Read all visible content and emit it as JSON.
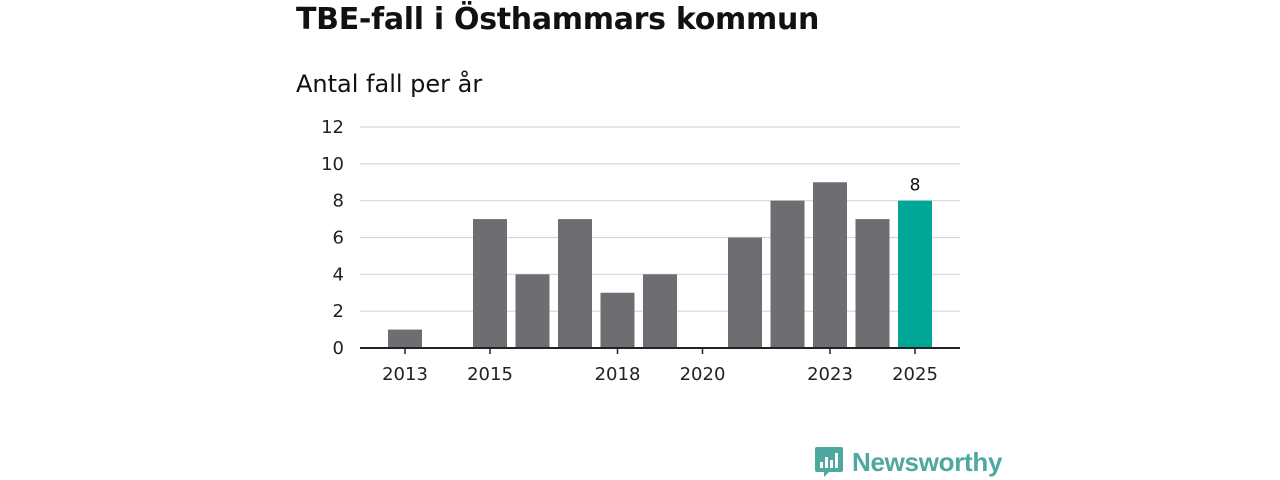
{
  "chart_data": {
    "type": "bar",
    "title": "TBE-fall i Östhammars kommun",
    "subtitle": "Antal fall per år",
    "xlabel": "",
    "ylabel": "",
    "categories": [
      2013,
      2014,
      2015,
      2016,
      2017,
      2018,
      2019,
      2020,
      2021,
      2022,
      2023,
      2024,
      2025
    ],
    "values": [
      1,
      0,
      7,
      4,
      7,
      3,
      4,
      0,
      6,
      8,
      9,
      7,
      8
    ],
    "x_tick_labels": [
      "2013",
      "2015",
      "2018",
      "2020",
      "2023",
      "2025"
    ],
    "y_ticks": [
      0,
      2,
      4,
      6,
      8,
      10,
      12
    ],
    "ylim": [
      0,
      12
    ],
    "grid": true,
    "highlight": {
      "category": 2025,
      "label": "8"
    },
    "colors": {
      "bar": "#6e6d72",
      "highlight": "#00a796",
      "grid": "#d6d6d6",
      "axis": "#222222"
    }
  },
  "brand": {
    "name": "Newsworthy",
    "icon": "bar-chart-bubble-icon",
    "color": "#4fa8a0"
  }
}
